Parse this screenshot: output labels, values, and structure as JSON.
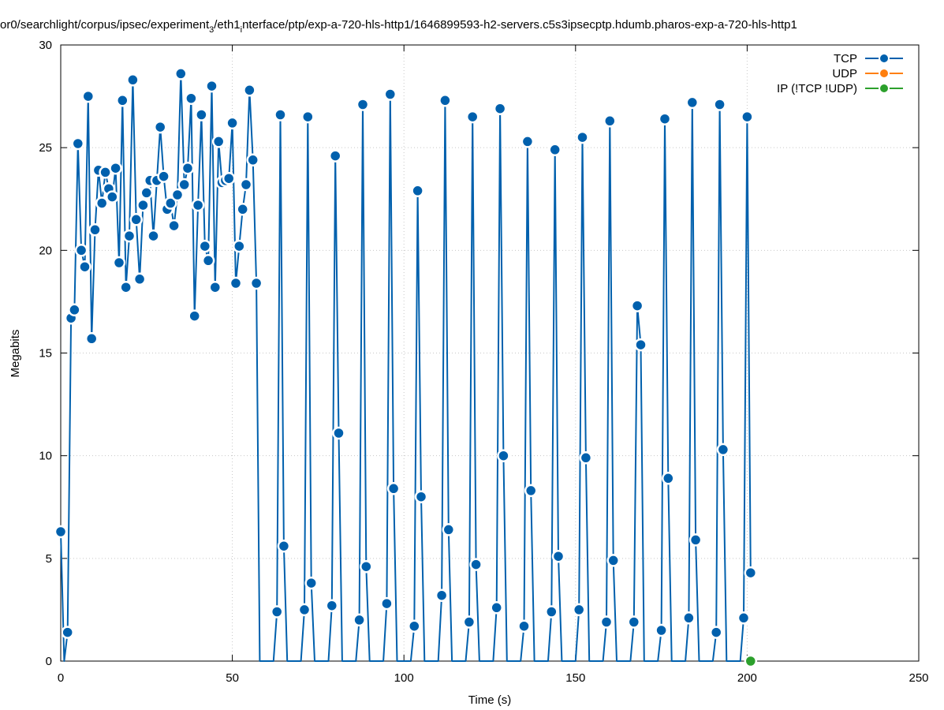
{
  "chart_data": {
    "type": "line",
    "title": "or0/searchlight/corpus/ipsec/experiment",
    "title_sub": "3",
    "title_mid": "/eth1",
    "title_sub2": "i",
    "title_tail": "nterface/ptp/exp-a-720-hls-http1/1646899593-h2-servers.c5s3ipsecptp.hdumb.pharos-exp-a-720-hls-http1",
    "xlabel": "Time (s)",
    "ylabel": "Megabits",
    "xlim": [
      0,
      250
    ],
    "ylim": [
      0,
      30
    ],
    "xticks": [
      0,
      50,
      100,
      150,
      200,
      250
    ],
    "yticks": [
      0,
      5,
      10,
      15,
      20,
      25,
      30
    ],
    "grid": true,
    "legend_position": "top-right",
    "colors": {
      "tcp": "#0060ad",
      "udp": "#ff7f0e",
      "ip": "#2ca02c"
    },
    "series": [
      {
        "name": "TCP",
        "points": [
          [
            0,
            6.3
          ],
          [
            1,
            0
          ],
          [
            2,
            1.4
          ],
          [
            3,
            16.7
          ],
          [
            4,
            17.1
          ],
          [
            5,
            25.2
          ],
          [
            6,
            20.0
          ],
          [
            7,
            19.2
          ],
          [
            8,
            27.5
          ],
          [
            9,
            15.7
          ],
          [
            10,
            21.0
          ],
          [
            11,
            23.9
          ],
          [
            12,
            22.3
          ],
          [
            13,
            23.8
          ],
          [
            14,
            23.0
          ],
          [
            15,
            22.6
          ],
          [
            16,
            24.0
          ],
          [
            17,
            19.4
          ],
          [
            18,
            27.3
          ],
          [
            19,
            18.2
          ],
          [
            20,
            20.7
          ],
          [
            21,
            28.3
          ],
          [
            22,
            21.5
          ],
          [
            23,
            18.6
          ],
          [
            24,
            22.2
          ],
          [
            25,
            22.8
          ],
          [
            26,
            23.4
          ],
          [
            27,
            20.7
          ],
          [
            28,
            23.4
          ],
          [
            29,
            26.0
          ],
          [
            30,
            23.6
          ],
          [
            31,
            22.0
          ],
          [
            32,
            22.3
          ],
          [
            33,
            21.2
          ],
          [
            34,
            22.7
          ],
          [
            35,
            28.6
          ],
          [
            36,
            23.2
          ],
          [
            37,
            24.0
          ],
          [
            38,
            27.4
          ],
          [
            39,
            16.8
          ],
          [
            40,
            22.2
          ],
          [
            41,
            26.6
          ],
          [
            42,
            20.2
          ],
          [
            43,
            19.5
          ],
          [
            44,
            28.0
          ],
          [
            45,
            18.2
          ],
          [
            46,
            25.3
          ],
          [
            47,
            23.3
          ],
          [
            48,
            23.4
          ],
          [
            49,
            23.5
          ],
          [
            50,
            26.2
          ],
          [
            51,
            18.4
          ],
          [
            52,
            20.2
          ],
          [
            53,
            22.0
          ],
          [
            54,
            23.2
          ],
          [
            55,
            27.8
          ],
          [
            56,
            24.4
          ],
          [
            57,
            18.4
          ],
          [
            58,
            0
          ],
          [
            59,
            0
          ],
          [
            60,
            0
          ],
          [
            61,
            0
          ],
          [
            62,
            0
          ],
          [
            63,
            2.4
          ],
          [
            64,
            26.6
          ],
          [
            65,
            5.6
          ],
          [
            66,
            0
          ],
          [
            67,
            0
          ],
          [
            68,
            0
          ],
          [
            69,
            0
          ],
          [
            70,
            0
          ],
          [
            71,
            2.5
          ],
          [
            72,
            26.5
          ],
          [
            73,
            3.8
          ],
          [
            74,
            0
          ],
          [
            75,
            0
          ],
          [
            76,
            0
          ],
          [
            77,
            0
          ],
          [
            78,
            0
          ],
          [
            79,
            2.7
          ],
          [
            80,
            24.6
          ],
          [
            81,
            11.1
          ],
          [
            82,
            0
          ],
          [
            83,
            0
          ],
          [
            84,
            0
          ],
          [
            85,
            0
          ],
          [
            86,
            0
          ],
          [
            87,
            2.0
          ],
          [
            88,
            27.1
          ],
          [
            89,
            4.6
          ],
          [
            90,
            0
          ],
          [
            91,
            0
          ],
          [
            92,
            0
          ],
          [
            93,
            0
          ],
          [
            94,
            0
          ],
          [
            95,
            2.8
          ],
          [
            96,
            27.6
          ],
          [
            97,
            8.4
          ],
          [
            98,
            0
          ],
          [
            99,
            0
          ],
          [
            100,
            0
          ],
          [
            101,
            0
          ],
          [
            102,
            0
          ],
          [
            103,
            1.7
          ],
          [
            104,
            22.9
          ],
          [
            105,
            8.0
          ],
          [
            106,
            0
          ],
          [
            107,
            0
          ],
          [
            108,
            0
          ],
          [
            109,
            0
          ],
          [
            110,
            0
          ],
          [
            111,
            3.2
          ],
          [
            112,
            27.3
          ],
          [
            113,
            6.4
          ],
          [
            114,
            0
          ],
          [
            115,
            0
          ],
          [
            116,
            0
          ],
          [
            117,
            0
          ],
          [
            118,
            0
          ],
          [
            119,
            1.9
          ],
          [
            120,
            26.5
          ],
          [
            121,
            4.7
          ],
          [
            122,
            0
          ],
          [
            123,
            0
          ],
          [
            124,
            0
          ],
          [
            125,
            0
          ],
          [
            126,
            0
          ],
          [
            127,
            2.6
          ],
          [
            128,
            26.9
          ],
          [
            129,
            10.0
          ],
          [
            130,
            0
          ],
          [
            131,
            0
          ],
          [
            132,
            0
          ],
          [
            133,
            0
          ],
          [
            134,
            0
          ],
          [
            135,
            1.7
          ],
          [
            136,
            25.3
          ],
          [
            137,
            8.3
          ],
          [
            138,
            0
          ],
          [
            139,
            0
          ],
          [
            140,
            0
          ],
          [
            141,
            0
          ],
          [
            142,
            0
          ],
          [
            143,
            2.4
          ],
          [
            144,
            24.9
          ],
          [
            145,
            5.1
          ],
          [
            146,
            0
          ],
          [
            147,
            0
          ],
          [
            148,
            0
          ],
          [
            149,
            0
          ],
          [
            150,
            0
          ],
          [
            151,
            2.5
          ],
          [
            152,
            25.5
          ],
          [
            153,
            9.9
          ],
          [
            154,
            0
          ],
          [
            155,
            0
          ],
          [
            156,
            0
          ],
          [
            157,
            0
          ],
          [
            158,
            0
          ],
          [
            159,
            1.9
          ],
          [
            160,
            26.3
          ],
          [
            161,
            4.9
          ],
          [
            162,
            0
          ],
          [
            163,
            0
          ],
          [
            164,
            0
          ],
          [
            165,
            0
          ],
          [
            166,
            0
          ],
          [
            167,
            1.9
          ],
          [
            168,
            17.3
          ],
          [
            169,
            15.4
          ],
          [
            170,
            0
          ],
          [
            171,
            0
          ],
          [
            172,
            0
          ],
          [
            173,
            0
          ],
          [
            174,
            0
          ],
          [
            175,
            1.5
          ],
          [
            176,
            26.4
          ],
          [
            177,
            8.9
          ],
          [
            178,
            0
          ],
          [
            179,
            0
          ],
          [
            180,
            0
          ],
          [
            181,
            0
          ],
          [
            182,
            0
          ],
          [
            183,
            2.1
          ],
          [
            184,
            27.2
          ],
          [
            185,
            5.9
          ],
          [
            186,
            0
          ],
          [
            187,
            0
          ],
          [
            188,
            0
          ],
          [
            189,
            0
          ],
          [
            190,
            0
          ],
          [
            191,
            1.4
          ],
          [
            192,
            27.1
          ],
          [
            193,
            10.3
          ],
          [
            194,
            0
          ],
          [
            195,
            0
          ],
          [
            196,
            0
          ],
          [
            197,
            0
          ],
          [
            198,
            0
          ],
          [
            199,
            2.1
          ],
          [
            200,
            26.5
          ],
          [
            201,
            4.3
          ]
        ],
        "markers": [
          [
            0,
            6.3
          ],
          [
            2,
            1.4
          ],
          [
            3,
            16.7
          ],
          [
            4,
            17.1
          ],
          [
            5,
            25.2
          ],
          [
            6,
            20.0
          ],
          [
            7,
            19.2
          ],
          [
            8,
            27.5
          ],
          [
            9,
            15.7
          ],
          [
            10,
            21.0
          ],
          [
            11,
            23.9
          ],
          [
            12,
            22.3
          ],
          [
            13,
            23.8
          ],
          [
            14,
            23.0
          ],
          [
            15,
            22.6
          ],
          [
            16,
            24.0
          ],
          [
            17,
            19.4
          ],
          [
            18,
            27.3
          ],
          [
            19,
            18.2
          ],
          [
            20,
            20.7
          ],
          [
            21,
            28.3
          ],
          [
            22,
            21.5
          ],
          [
            23,
            18.6
          ],
          [
            24,
            22.2
          ],
          [
            25,
            22.8
          ],
          [
            26,
            23.4
          ],
          [
            27,
            20.7
          ],
          [
            28,
            23.4
          ],
          [
            29,
            26.0
          ],
          [
            30,
            23.6
          ],
          [
            31,
            22.0
          ],
          [
            32,
            22.3
          ],
          [
            33,
            21.2
          ],
          [
            34,
            22.7
          ],
          [
            35,
            28.6
          ],
          [
            36,
            23.2
          ],
          [
            37,
            24.0
          ],
          [
            38,
            27.4
          ],
          [
            39,
            16.8
          ],
          [
            40,
            22.2
          ],
          [
            41,
            26.6
          ],
          [
            42,
            20.2
          ],
          [
            43,
            19.5
          ],
          [
            44,
            28.0
          ],
          [
            45,
            18.2
          ],
          [
            46,
            25.3
          ],
          [
            47,
            23.3
          ],
          [
            48,
            23.4
          ],
          [
            49,
            23.5
          ],
          [
            50,
            26.2
          ],
          [
            51,
            18.4
          ],
          [
            52,
            20.2
          ],
          [
            53,
            22.0
          ],
          [
            54,
            23.2
          ],
          [
            55,
            27.8
          ],
          [
            56,
            24.4
          ],
          [
            57,
            18.4
          ],
          [
            63,
            2.4
          ],
          [
            64,
            26.6
          ],
          [
            65,
            5.6
          ],
          [
            71,
            2.5
          ],
          [
            72,
            26.5
          ],
          [
            73,
            3.8
          ],
          [
            79,
            2.7
          ],
          [
            80,
            24.6
          ],
          [
            81,
            11.1
          ],
          [
            87,
            2.0
          ],
          [
            88,
            27.1
          ],
          [
            89,
            4.6
          ],
          [
            95,
            2.8
          ],
          [
            96,
            27.6
          ],
          [
            97,
            8.4
          ],
          [
            103,
            1.7
          ],
          [
            104,
            22.9
          ],
          [
            105,
            8.0
          ],
          [
            111,
            3.2
          ],
          [
            112,
            27.3
          ],
          [
            113,
            6.4
          ],
          [
            119,
            1.9
          ],
          [
            120,
            26.5
          ],
          [
            121,
            4.7
          ],
          [
            127,
            2.6
          ],
          [
            128,
            26.9
          ],
          [
            129,
            10.0
          ],
          [
            135,
            1.7
          ],
          [
            136,
            25.3
          ],
          [
            137,
            8.3
          ],
          [
            143,
            2.4
          ],
          [
            144,
            24.9
          ],
          [
            145,
            5.1
          ],
          [
            151,
            2.5
          ],
          [
            152,
            25.5
          ],
          [
            153,
            9.9
          ],
          [
            159,
            1.9
          ],
          [
            160,
            26.3
          ],
          [
            161,
            4.9
          ],
          [
            167,
            1.9
          ],
          [
            168,
            17.3
          ],
          [
            169,
            15.4
          ],
          [
            175,
            1.5
          ],
          [
            176,
            26.4
          ],
          [
            177,
            8.9
          ],
          [
            183,
            2.1
          ],
          [
            184,
            27.2
          ],
          [
            185,
            5.9
          ],
          [
            191,
            1.4
          ],
          [
            192,
            27.1
          ],
          [
            193,
            10.3
          ],
          [
            199,
            2.1
          ],
          [
            200,
            26.5
          ],
          [
            201,
            4.3
          ]
        ]
      },
      {
        "name": "UDP",
        "points": []
      },
      {
        "name": "IP (!TCP  !UDP)",
        "points": [
          [
            201,
            0
          ]
        ],
        "markers": [
          [
            201,
            0
          ]
        ]
      }
    ]
  }
}
